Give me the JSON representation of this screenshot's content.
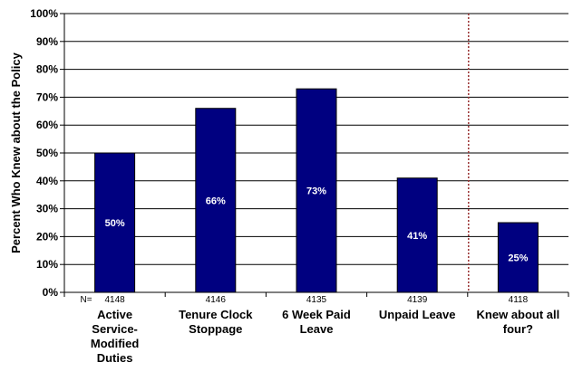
{
  "chart_data": {
    "type": "bar",
    "title": "",
    "xlabel": "",
    "ylabel": "Percent Who Knew about the Policy",
    "ylim": [
      0,
      100
    ],
    "y_ticks": [
      "0%",
      "10%",
      "20%",
      "30%",
      "40%",
      "50%",
      "60%",
      "70%",
      "80%",
      "90%",
      "100%"
    ],
    "categories": [
      [
        "Active",
        "Service-",
        "Modified",
        "Duties"
      ],
      [
        "Tenure Clock",
        "Stoppage"
      ],
      [
        "6 Week Paid",
        "Leave"
      ],
      [
        "Unpaid Leave"
      ],
      [
        "Knew about all",
        "four?"
      ]
    ],
    "values": [
      50,
      66,
      73,
      41,
      25
    ],
    "data_labels": [
      "50%",
      "66%",
      "73%",
      "41%",
      "25%"
    ],
    "n_prefix": "N=",
    "n_values": [
      "4148",
      "4146",
      "4135",
      "4139",
      "4118"
    ],
    "bar_color": "#000080",
    "separator_color": "#993333",
    "grid": true
  }
}
